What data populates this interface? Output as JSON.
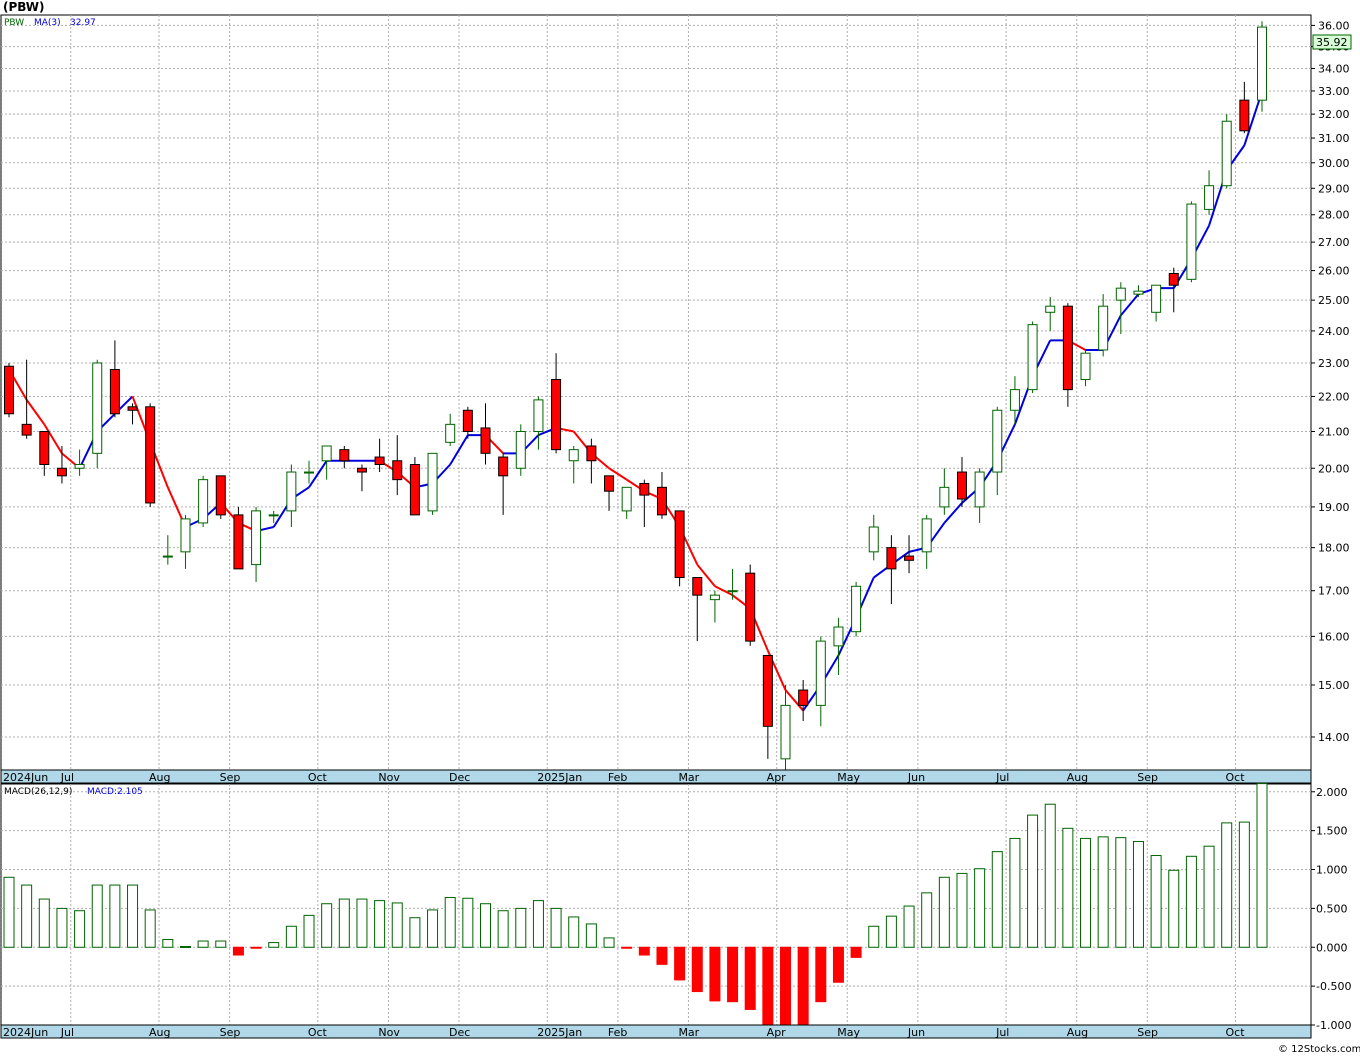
{
  "title": "(PBW)",
  "copyright": "© 12Stocks.com",
  "colors": {
    "up_body": "#ffffff",
    "up_edge": "#006400",
    "down_body": "#ff0000",
    "ma_up": "#0000dd",
    "ma_down": "#ff0000",
    "grid": "#b0b0b0",
    "axis_band": "#b0d8e8",
    "last_price_box": "#d8ffd8"
  },
  "price_panel": {
    "legend": {
      "symbol": "PBW",
      "ma_label": "MA(3)",
      "ma_value": "32.97"
    },
    "last_price_label": "35.92",
    "y_ticks": [
      "14.00",
      "15.00",
      "16.00",
      "17.00",
      "18.00",
      "19.00",
      "20.00",
      "21.00",
      "22.00",
      "23.00",
      "24.00",
      "25.00",
      "26.00",
      "27.00",
      "28.00",
      "29.00",
      "30.00",
      "31.00",
      "32.00",
      "33.00",
      "34.00",
      "35.00",
      "36.00"
    ],
    "x_labels": [
      "2024Jun",
      "Jul",
      "Aug",
      "Sep",
      "Oct",
      "Nov",
      "Dec",
      "2025Jan",
      "Feb",
      "Mar",
      "Apr",
      "May",
      "Jun",
      "Jul",
      "Aug",
      "Sep",
      "Oct"
    ]
  },
  "macd_panel": {
    "legend": {
      "label": "MACD(26,12,9)",
      "value_label": "MACD:2.105"
    },
    "y_ticks": [
      "-1.000",
      "-0.500",
      "0.000",
      "0.500",
      "1.000",
      "1.500",
      "2.000"
    ],
    "x_labels": [
      "2024Jun",
      "Jul",
      "Aug",
      "Sep",
      "Oct",
      "Nov",
      "Dec",
      "2025Jan",
      "Feb",
      "Mar",
      "Apr",
      "May",
      "Jun",
      "Jul",
      "Aug",
      "Sep",
      "Oct"
    ]
  },
  "chart_data": [
    {
      "type": "candlestick",
      "title": "(PBW)",
      "scale": "log",
      "ylim": [
        13.4,
        36.5
      ],
      "x_start": "2024-05-31",
      "interval": "weekly",
      "month_labels": [
        {
          "label": "2024Jun",
          "week": 0
        },
        {
          "label": "Jul",
          "week": 4
        },
        {
          "label": "Aug",
          "week": 9
        },
        {
          "label": "Sep",
          "week": 13
        },
        {
          "label": "Oct",
          "week": 18
        },
        {
          "label": "Nov",
          "week": 22
        },
        {
          "label": "Dec",
          "week": 26
        },
        {
          "label": "2025Jan",
          "week": 31
        },
        {
          "label": "Feb",
          "week": 35
        },
        {
          "label": "Mar",
          "week": 39
        },
        {
          "label": "Apr",
          "week": 44
        },
        {
          "label": "May",
          "week": 48
        },
        {
          "label": "Jun",
          "week": 52
        },
        {
          "label": "Jul",
          "week": 57
        },
        {
          "label": "Aug",
          "week": 61
        },
        {
          "label": "Sep",
          "week": 65
        },
        {
          "label": "Oct",
          "week": 70
        }
      ],
      "ohlc": [
        [
          22.9,
          23.0,
          21.4,
          21.5
        ],
        [
          21.2,
          23.1,
          20.8,
          20.9
        ],
        [
          21.0,
          21.0,
          19.8,
          20.1
        ],
        [
          20.0,
          20.6,
          19.6,
          19.8
        ],
        [
          20.0,
          20.5,
          19.8,
          20.1
        ],
        [
          20.4,
          23.1,
          20.0,
          23.0
        ],
        [
          22.8,
          23.7,
          21.4,
          21.5
        ],
        [
          21.7,
          21.8,
          21.2,
          21.6
        ],
        [
          21.7,
          21.8,
          19.0,
          19.1
        ],
        [
          17.8,
          18.3,
          17.6,
          17.8
        ],
        [
          17.9,
          18.8,
          17.5,
          18.7
        ],
        [
          18.6,
          19.8,
          18.5,
          19.7
        ],
        [
          19.8,
          19.8,
          18.7,
          18.8
        ],
        [
          18.8,
          19.0,
          17.5,
          17.5
        ],
        [
          17.6,
          19.0,
          17.2,
          18.9
        ],
        [
          18.8,
          18.9,
          18.6,
          18.8
        ],
        [
          18.9,
          20.1,
          18.5,
          19.9
        ],
        [
          19.9,
          20.2,
          19.6,
          19.9
        ],
        [
          20.2,
          20.6,
          19.7,
          20.6
        ],
        [
          20.5,
          20.6,
          20.0,
          20.2
        ],
        [
          20.0,
          20.1,
          19.4,
          19.9
        ],
        [
          20.3,
          20.8,
          19.9,
          20.1
        ],
        [
          20.2,
          20.9,
          19.3,
          19.7
        ],
        [
          20.1,
          20.3,
          18.8,
          18.8
        ],
        [
          18.9,
          20.4,
          18.8,
          20.4
        ],
        [
          20.7,
          21.5,
          20.6,
          21.2
        ],
        [
          21.6,
          21.7,
          20.8,
          21.0
        ],
        [
          21.1,
          21.8,
          20.1,
          20.4
        ],
        [
          20.3,
          20.4,
          18.8,
          19.8
        ],
        [
          20.0,
          21.2,
          19.8,
          21.0
        ],
        [
          21.0,
          22.0,
          20.5,
          21.9
        ],
        [
          22.5,
          23.3,
          20.4,
          20.5
        ],
        [
          20.2,
          20.6,
          19.6,
          20.5
        ],
        [
          20.6,
          20.8,
          19.6,
          20.2
        ],
        [
          19.8,
          19.8,
          18.9,
          19.4
        ],
        [
          18.9,
          19.5,
          18.7,
          19.5
        ],
        [
          19.6,
          19.7,
          18.5,
          19.3
        ],
        [
          19.5,
          19.9,
          18.7,
          18.8
        ],
        [
          18.9,
          18.9,
          17.1,
          17.3
        ],
        [
          17.3,
          17.3,
          15.9,
          16.9
        ],
        [
          16.8,
          17.0,
          16.3,
          16.9
        ],
        [
          17.0,
          17.5,
          16.8,
          17.0
        ],
        [
          17.4,
          17.6,
          15.8,
          15.9
        ],
        [
          15.6,
          15.6,
          13.6,
          14.2
        ],
        [
          13.6,
          15.0,
          13.3,
          14.6
        ],
        [
          14.9,
          15.1,
          14.3,
          14.6
        ],
        [
          14.6,
          16.0,
          14.2,
          15.9
        ],
        [
          15.8,
          16.4,
          15.2,
          16.2
        ],
        [
          16.1,
          17.2,
          16.0,
          17.1
        ],
        [
          17.9,
          18.8,
          17.7,
          18.5
        ],
        [
          18.0,
          18.3,
          16.7,
          17.5
        ],
        [
          17.8,
          18.3,
          17.4,
          17.7
        ],
        [
          17.9,
          18.8,
          17.5,
          18.7
        ],
        [
          19.0,
          20.0,
          18.8,
          19.5
        ],
        [
          19.9,
          20.3,
          19.0,
          19.2
        ],
        [
          19.0,
          20.0,
          18.6,
          19.9
        ],
        [
          19.9,
          21.7,
          19.3,
          21.6
        ],
        [
          21.6,
          22.6,
          21.2,
          22.2
        ],
        [
          22.2,
          24.3,
          22.1,
          24.2
        ],
        [
          24.6,
          25.1,
          24.0,
          24.8
        ],
        [
          24.8,
          24.9,
          21.7,
          22.2
        ],
        [
          22.5,
          23.4,
          22.3,
          23.3
        ],
        [
          23.4,
          25.2,
          23.2,
          24.8
        ],
        [
          25.0,
          25.6,
          23.9,
          25.4
        ],
        [
          25.2,
          25.5,
          25.1,
          25.3
        ],
        [
          24.6,
          25.5,
          24.3,
          25.5
        ],
        [
          25.9,
          26.1,
          24.6,
          25.5
        ],
        [
          25.7,
          28.5,
          25.6,
          28.4
        ],
        [
          28.2,
          29.7,
          28.0,
          29.1
        ],
        [
          29.1,
          32.0,
          29.0,
          31.7
        ],
        [
          32.6,
          33.4,
          31.2,
          31.3
        ],
        [
          32.6,
          36.2,
          32.1,
          35.92
        ]
      ],
      "ma3": [
        22.8,
        21.9,
        21.2,
        20.4,
        20.0,
        21.0,
        21.5,
        22.0,
        20.7,
        19.5,
        18.5,
        18.7,
        19.1,
        18.6,
        18.4,
        18.5,
        19.2,
        19.5,
        20.2,
        20.2,
        20.2,
        20.2,
        19.9,
        19.5,
        19.6,
        20.1,
        20.9,
        20.9,
        20.4,
        20.4,
        20.9,
        21.1,
        21.0,
        20.4,
        20.0,
        19.7,
        19.4,
        19.2,
        18.5,
        17.6,
        17.1,
        16.9,
        16.6,
        15.7,
        14.9,
        14.5,
        15.0,
        15.6,
        16.4,
        17.3,
        17.6,
        17.9,
        18.0,
        18.6,
        19.1,
        19.5,
        20.2,
        21.2,
        22.6,
        23.7,
        23.7,
        23.4,
        23.4,
        24.5,
        25.2,
        25.4,
        25.4,
        26.4,
        27.6,
        29.7,
        30.7,
        32.97
      ],
      "last_value": 35.92,
      "ma_label": "MA(3)",
      "ma_value": 32.97
    },
    {
      "type": "bar",
      "title": "MACD(26,12,9)",
      "ylim": [
        -1.0,
        2.1
      ],
      "values": [
        0.9,
        0.8,
        0.62,
        0.5,
        0.47,
        0.8,
        0.8,
        0.8,
        0.48,
        0.1,
        0.01,
        0.08,
        0.08,
        -0.1,
        -0.01,
        0.06,
        0.27,
        0.41,
        0.56,
        0.62,
        0.62,
        0.6,
        0.57,
        0.38,
        0.48,
        0.64,
        0.63,
        0.56,
        0.47,
        0.5,
        0.6,
        0.5,
        0.39,
        0.3,
        0.12,
        -0.01,
        -0.1,
        -0.22,
        -0.42,
        -0.57,
        -0.69,
        -0.7,
        -0.8,
        -1.02,
        -1.1,
        -1.0,
        -0.7,
        -0.45,
        -0.13,
        0.27,
        0.4,
        0.53,
        0.7,
        0.9,
        0.95,
        1.01,
        1.23,
        1.4,
        1.7,
        1.84,
        1.53,
        1.4,
        1.42,
        1.41,
        1.36,
        1.18,
        0.99,
        1.17,
        1.3,
        1.6,
        1.61,
        2.105
      ],
      "last_value": 2.105
    }
  ]
}
